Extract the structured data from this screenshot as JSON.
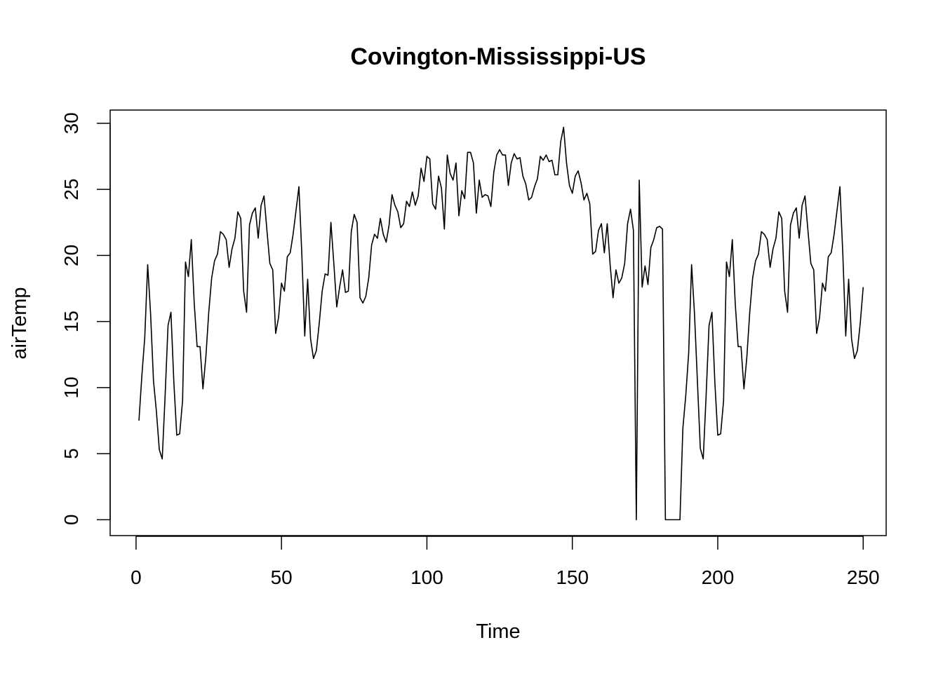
{
  "chart_data": {
    "type": "line",
    "title": "Covington-Mississippi-US",
    "xlabel": "Time",
    "ylabel": "airTemp",
    "xlim": [
      -8.9,
      257.9
    ],
    "ylim": [
      -1.2,
      31.0
    ],
    "x_ticks": [
      0,
      50,
      100,
      150,
      200,
      250
    ],
    "y_ticks": [
      0,
      5,
      10,
      15,
      20,
      25,
      30
    ],
    "grid": false,
    "legend": "none",
    "line_color": "#000000",
    "x_start": 1,
    "series": [
      {
        "values": [
          7.5,
          10.9,
          13.8,
          19.3,
          15.6,
          10.5,
          8.2,
          5.3,
          4.6,
          9.4,
          14.7,
          15.7,
          10.4,
          6.4,
          6.5,
          9.0,
          19.5,
          18.4,
          21.2,
          16.4,
          13.1,
          13.1,
          9.9,
          12.3,
          15.7,
          18.3,
          19.6,
          20.1,
          21.8,
          21.6,
          21.2,
          19.1,
          20.5,
          21.3,
          23.3,
          22.8,
          17.3,
          15.7,
          22.3,
          23.2,
          23.6,
          21.3,
          23.8,
          24.5,
          21.9,
          19.4,
          18.9,
          14.1,
          15.3,
          17.9,
          17.3,
          19.9,
          20.2,
          21.6,
          23.4,
          25.2,
          20.1,
          13.9,
          18.2,
          13.7,
          12.2,
          12.8,
          14.9,
          17.3,
          18.6,
          18.5,
          22.5,
          19.4,
          16.1,
          17.6,
          18.9,
          17.2,
          17.3,
          21.8,
          23.1,
          22.5,
          16.8,
          16.4,
          16.9,
          18.3,
          20.8,
          21.6,
          21.3,
          22.8,
          21.6,
          21.0,
          22.3,
          24.6,
          23.8,
          23.3,
          22.1,
          22.4,
          24.1,
          23.7,
          24.8,
          23.8,
          24.5,
          26.6,
          25.6,
          27.5,
          27.3,
          23.9,
          23.5,
          26.0,
          25.1,
          22.0,
          27.6,
          26.2,
          25.7,
          27.0,
          23.0,
          24.9,
          24.3,
          27.8,
          27.8,
          27.0,
          23.2,
          25.7,
          24.4,
          24.6,
          24.5,
          23.7,
          26.3,
          27.6,
          28.0,
          27.6,
          27.6,
          25.3,
          27.0,
          27.7,
          27.3,
          27.4,
          26.0,
          25.4,
          24.2,
          24.4,
          25.2,
          25.8,
          27.5,
          27.2,
          27.6,
          27.1,
          27.2,
          26.1,
          26.1,
          28.6,
          29.7,
          27.0,
          25.3,
          24.7,
          26.0,
          26.4,
          25.5,
          24.2,
          24.7,
          23.9,
          20.1,
          20.3,
          21.9,
          22.4,
          20.2,
          22.4,
          19.3,
          16.8,
          18.9,
          17.9,
          18.3,
          19.4,
          22.4,
          23.5,
          21.9,
          0.0,
          25.7,
          17.6,
          19.2,
          17.8,
          20.6,
          21.2,
          22.1,
          22.2,
          22.0,
          0.0,
          0.0,
          0.0,
          0.0,
          0.0,
          0.0,
          6.9,
          9.4,
          12.6,
          19.3,
          15.6,
          10.5,
          5.4,
          4.6,
          9.4,
          14.7,
          15.7,
          10.4,
          6.4,
          6.5,
          9.0,
          19.5,
          18.4,
          21.2,
          16.4,
          13.1,
          13.1,
          9.9,
          12.3,
          15.7,
          18.3,
          19.6,
          20.1,
          21.8,
          21.6,
          21.2,
          19.1,
          20.5,
          21.3,
          23.3,
          22.8,
          17.3,
          15.7,
          22.3,
          23.2,
          23.6,
          21.3,
          23.8,
          24.5,
          21.9,
          19.4,
          18.9,
          14.1,
          15.3,
          17.9,
          17.3,
          19.9,
          20.2,
          21.6,
          23.4,
          25.2,
          20.1,
          13.9,
          18.2,
          13.7,
          12.2,
          12.8,
          14.9,
          17.6
        ]
      }
    ]
  }
}
